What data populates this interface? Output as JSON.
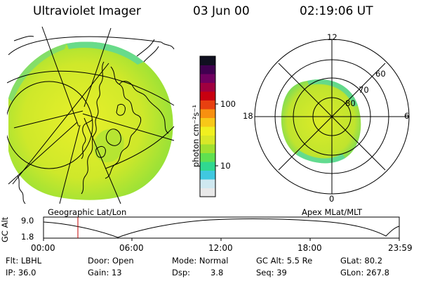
{
  "header": {
    "instrument": "Ultraviolet Imager",
    "date": "03 Jun 00",
    "time": "02:19:06 UT"
  },
  "colorbar": {
    "unit_label": "photon cm⁻²s⁻¹",
    "tick_100": "100",
    "tick_10": "10",
    "colors": [
      "#e8e8e8",
      "#cfe8f0",
      "#40c8e0",
      "#30d890",
      "#60e050",
      "#a0e030",
      "#d8e828",
      "#f0f020",
      "#f8c818",
      "#f89010",
      "#e84010",
      "#c80010",
      "#a00040",
      "#700060",
      "#400050",
      "#101020"
    ]
  },
  "left_panel": {
    "caption": "Geographic Lat/Lon"
  },
  "right_panel": {
    "caption": "Apex MLat/MLT",
    "mlt_labels": {
      "top": "12",
      "left": "18",
      "right": "6",
      "bottom": "0"
    },
    "lat_labels": {
      "l60": "60",
      "l70": "70",
      "l80": "80"
    }
  },
  "altitude_plot": {
    "ylabel": "GC Alt",
    "ymax": "9.0",
    "ymin": "1.8",
    "xticks": [
      "00:00",
      "06:00",
      "12:00",
      "18:00",
      "23:59"
    ],
    "marker_time_hours": 2.32,
    "marker_color": "#c00000"
  },
  "footer": {
    "flt": "Flt: LBHL",
    "ip": "IP: 36.0",
    "door": "Door: Open",
    "gain": "Gain: 13",
    "mode": "Mode: Normal",
    "dsp_label": "Dsp:",
    "dsp_value": "3.8",
    "gc_alt": "GC Alt: 5.5 Re",
    "seq": "Seq: 39",
    "glat": "GLat: 80.2",
    "glon": "GLon: 267.8"
  }
}
